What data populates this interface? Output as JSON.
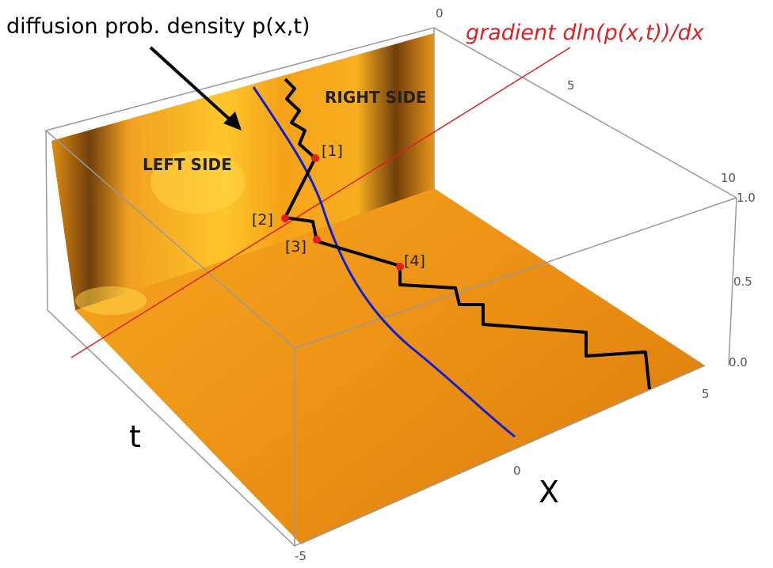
{
  "annotations": {
    "title": "diffusion prob. density p(x,t)",
    "gradient": "gradient dln(p(x,t))/dx",
    "right_side": "RIGHT SIDE",
    "left_side": "LEFT SIDE"
  },
  "points": [
    "[1]",
    "[2]",
    "[3]",
    "[4]"
  ],
  "axes": {
    "t_label": "t",
    "x_label": "X",
    "top_ticks": [
      "0",
      "5",
      "10"
    ],
    "z_ticks": [
      "1.0",
      "0.5",
      "0.0"
    ],
    "x_ticks": [
      "5",
      "0",
      "-5"
    ]
  }
}
